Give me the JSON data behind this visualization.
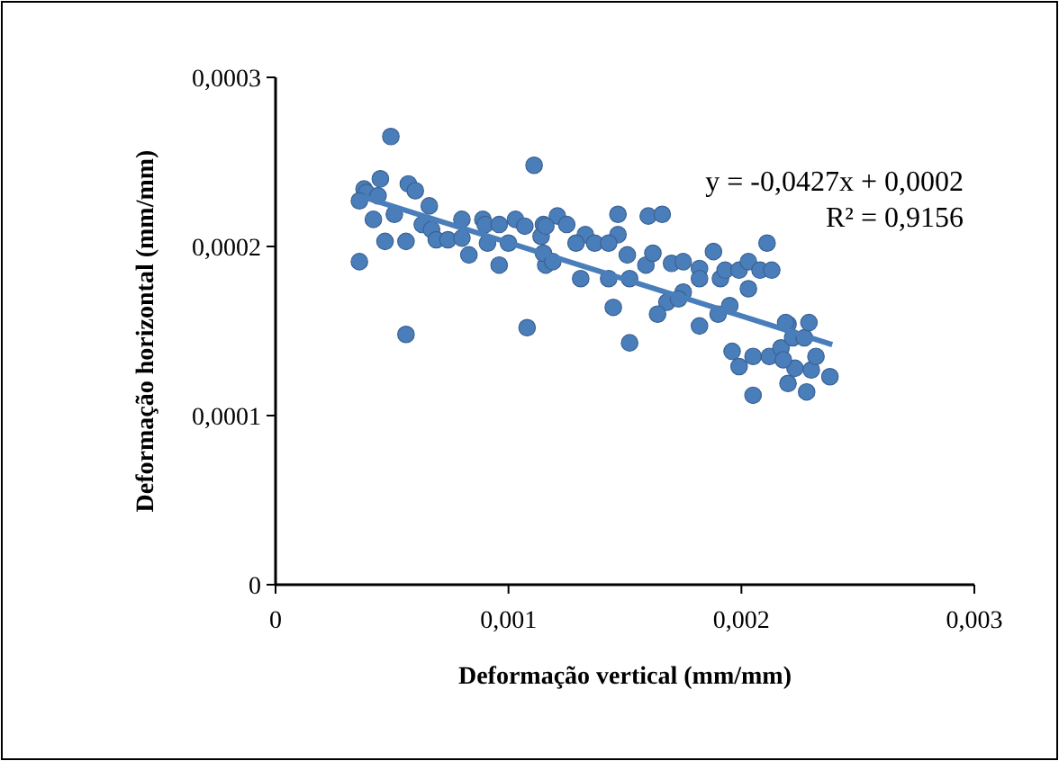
{
  "chart_data": {
    "type": "scatter",
    "xlabel": "Deformação vertical (mm/mm)",
    "ylabel": "Deformação horizontal (mm/mm)",
    "annotations": [
      "y = -0,0427x + 0,0002",
      "R² = 0,9156"
    ],
    "xlim": [
      0,
      0.003
    ],
    "xticks": [
      0,
      {
        "value": 0.001,
        "label": "0,001"
      },
      {
        "value": 0.002,
        "label": "0,002"
      },
      {
        "value": 0.003,
        "label": "0,003"
      }
    ],
    "ylim": [
      0,
      0.0003
    ],
    "yticks": [
      0,
      {
        "value": 0.0001,
        "label": "0,0001"
      },
      {
        "value": 0.0002,
        "label": "0,0002"
      },
      {
        "value": 0.0003,
        "label": "0,0003"
      }
    ],
    "grid": false,
    "marker": "circle",
    "series": [
      {
        "color": "#4a7ebb",
        "x": [
          0.000495,
          0.00111,
          0.00038,
          0.00039,
          0.00045,
          0.00036,
          0.00057,
          0.0006,
          0.00044,
          0.00042,
          0.00051,
          0.00066,
          0.00063,
          0.00067,
          0.00069,
          0.00074,
          0.0008,
          0.0008,
          0.00083,
          0.00089,
          0.0009,
          0.00096,
          0.00091,
          0.001,
          0.00103,
          0.00107,
          0.00115,
          0.00114,
          0.00096,
          0.00116,
          0.00036,
          0.00047,
          0.00056,
          0.00056,
          0.00108,
          0.00121,
          0.00125,
          0.00116,
          0.00115,
          0.00119,
          0.00133,
          0.00129,
          0.00137,
          0.00147,
          0.00147,
          0.00143,
          0.0016,
          0.00166,
          0.00151,
          0.00159,
          0.00162,
          0.00131,
          0.00143,
          0.00152,
          0.0017,
          0.00175,
          0.00182,
          0.00182,
          0.00175,
          0.00168,
          0.00164,
          0.00173,
          0.00188,
          0.00191,
          0.00193,
          0.00199,
          0.00203,
          0.00203,
          0.00208,
          0.00213,
          0.00211,
          0.00145,
          0.00152,
          0.00182,
          0.0019,
          0.00195,
          0.00196,
          0.00199,
          0.00205,
          0.00212,
          0.00217,
          0.0022,
          0.00222,
          0.00227,
          0.00223,
          0.0023,
          0.00232,
          0.0022,
          0.00228,
          0.00205,
          0.00219,
          0.00229,
          0.00218,
          0.00238
        ],
        "values": [
          0.000265,
          0.000248,
          0.000234,
          0.000232,
          0.00024,
          0.000227,
          0.000237,
          0.000233,
          0.00023,
          0.000216,
          0.000219,
          0.000224,
          0.000213,
          0.00021,
          0.000204,
          0.000204,
          0.000216,
          0.000205,
          0.000195,
          0.000216,
          0.000213,
          0.000213,
          0.000202,
          0.000202,
          0.000216,
          0.000212,
          0.000213,
          0.000206,
          0.000189,
          0.000189,
          0.000191,
          0.000203,
          0.000203,
          0.000148,
          0.000152,
          0.000218,
          0.000213,
          0.000212,
          0.000196,
          0.000191,
          0.000207,
          0.000202,
          0.000202,
          0.000219,
          0.000207,
          0.000202,
          0.000218,
          0.000219,
          0.000195,
          0.000189,
          0.000196,
          0.000181,
          0.000181,
          0.000181,
          0.00019,
          0.000191,
          0.000187,
          0.000181,
          0.000173,
          0.000167,
          0.00016,
          0.000169,
          0.000197,
          0.000181,
          0.000186,
          0.000186,
          0.000191,
          0.000175,
          0.000186,
          0.000186,
          0.000202,
          0.000164,
          0.000143,
          0.000153,
          0.00016,
          0.000165,
          0.000138,
          0.000129,
          0.000135,
          0.000135,
          0.00014,
          0.000154,
          0.000146,
          0.000146,
          0.000128,
          0.000127,
          0.000135,
          0.000119,
          0.000114,
          0.000112,
          0.000155,
          0.000155,
          0.000133,
          0.000123
        ]
      },
      {
        "type": "line",
        "color": "#4a7ebb",
        "marker": "none",
        "x": [
          0.00036,
          0.00239
        ],
        "values": [
          0.00023,
          0.000142
        ]
      }
    ]
  }
}
